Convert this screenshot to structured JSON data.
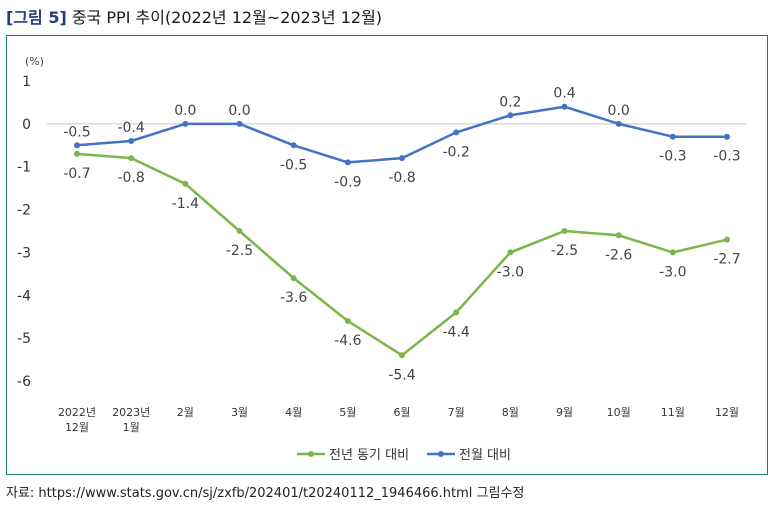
{
  "figure": {
    "label": "[그림 5]",
    "title": "중국 PPI 추이(2022년 12월~2023년 12월)"
  },
  "source": "자료: https://www.stats.gov.cn/sj/zxfb/202401/t20240112_1946466.html 그림수정",
  "chart_data": {
    "type": "line",
    "unit_label": "(%)",
    "categories": [
      [
        "2022년",
        "12월"
      ],
      [
        "2023년",
        "1월"
      ],
      [
        "2월"
      ],
      [
        "3월"
      ],
      [
        "4월"
      ],
      [
        "5월"
      ],
      [
        "6월"
      ],
      [
        "7월"
      ],
      [
        "8월"
      ],
      [
        "9월"
      ],
      [
        "10월"
      ],
      [
        "11월"
      ],
      [
        "12월"
      ]
    ],
    "ylim": [
      -6,
      1
    ],
    "yticks": [
      "1",
      "0",
      "-1",
      "-2",
      "-3",
      "-4",
      "-5",
      "-6"
    ],
    "grid": false,
    "zero_line": true,
    "legend_position": "bottom",
    "series": [
      {
        "name": "전년 동기 대비",
        "color": "#7ab648",
        "values": [
          -0.7,
          -0.8,
          -1.4,
          -2.5,
          -3.6,
          -4.6,
          -5.4,
          -4.4,
          -3.0,
          -2.5,
          -2.6,
          -3.0,
          -2.7
        ],
        "labels": [
          "-0.7",
          "-0.8",
          "-1.4",
          "-2.5",
          "-3.6",
          "-4.6",
          "-5.4",
          "-4.4",
          "-3.0",
          "-2.5",
          "-2.6",
          "-3.0",
          "-2.7"
        ]
      },
      {
        "name": "전월 대비",
        "color": "#4472c4",
        "values": [
          -0.5,
          -0.4,
          0.0,
          0.0,
          -0.5,
          -0.9,
          -0.8,
          -0.2,
          0.2,
          0.4,
          0.0,
          -0.3,
          -0.3
        ],
        "labels": [
          "-0.5",
          "-0.4",
          "0.0",
          "0.0",
          "-0.5",
          "-0.9",
          "-0.8",
          "-0.2",
          "0.2",
          "0.4",
          "0.0",
          "-0.3",
          "-0.3"
        ]
      }
    ]
  }
}
